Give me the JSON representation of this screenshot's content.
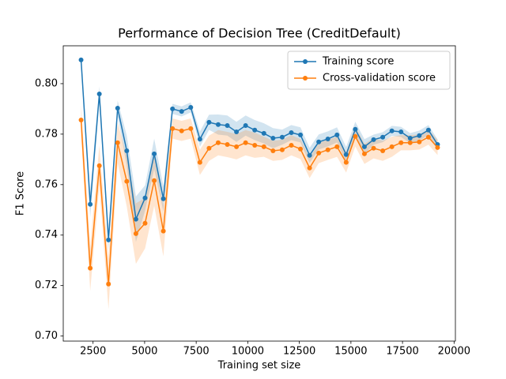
{
  "chart_data": {
    "type": "line",
    "title": "Performance of Decision Tree (CreditDefault)",
    "xlabel": "Training set size",
    "ylabel": "F1 Score",
    "x": [
      1920,
      2363,
      2806,
      3249,
      3692,
      4135,
      4578,
      5022,
      5465,
      5908,
      6351,
      6794,
      7237,
      7680,
      8123,
      8566,
      9009,
      9452,
      9895,
      10338,
      10782,
      11225,
      11668,
      12111,
      12554,
      12997,
      13440,
      13883,
      14326,
      14769,
      15212,
      15655,
      16098,
      16542,
      16985,
      17428,
      17871,
      18314,
      18757,
      19200
    ],
    "series": [
      {
        "name": "Training score",
        "color": "#1f77b4",
        "values": [
          0.8094,
          0.7522,
          0.7959,
          0.7381,
          0.7903,
          0.7734,
          0.7463,
          0.7547,
          0.7722,
          0.7544,
          0.79,
          0.789,
          0.7906,
          0.778,
          0.7847,
          0.7838,
          0.7834,
          0.7809,
          0.7834,
          0.7816,
          0.7803,
          0.7784,
          0.7788,
          0.7806,
          0.7797,
          0.7716,
          0.7769,
          0.7781,
          0.7797,
          0.7719,
          0.7819,
          0.775,
          0.7778,
          0.7788,
          0.7813,
          0.7809,
          0.7784,
          0.7794,
          0.7816,
          0.7759
        ],
        "errors": [
          0.002,
          0.005,
          0.003,
          0.004,
          0.003,
          0.006,
          0.009,
          0.005,
          0.006,
          0.005,
          0.002,
          0.002,
          0.002,
          0.003,
          0.003,
          0.004,
          0.004,
          0.004,
          0.004,
          0.004,
          0.004,
          0.004,
          0.003,
          0.003,
          0.003,
          0.003,
          0.003,
          0.003,
          0.003,
          0.003,
          0.003,
          0.003,
          0.002,
          0.002,
          0.002,
          0.002,
          0.002,
          0.002,
          0.002,
          0.002
        ]
      },
      {
        "name": "Cross-validation score",
        "color": "#ff7f0e",
        "values": [
          0.7856,
          0.7269,
          0.7675,
          0.7206,
          0.7766,
          0.7613,
          0.7406,
          0.7447,
          0.7616,
          0.7416,
          0.7822,
          0.7813,
          0.7822,
          0.7688,
          0.7744,
          0.7766,
          0.7759,
          0.775,
          0.7766,
          0.7756,
          0.775,
          0.7734,
          0.7738,
          0.7756,
          0.7741,
          0.7666,
          0.7725,
          0.7738,
          0.775,
          0.7688,
          0.7791,
          0.7722,
          0.7744,
          0.7734,
          0.775,
          0.7766,
          0.7766,
          0.7769,
          0.7788,
          0.7747
        ],
        "errors": [
          0.006,
          0.009,
          0.008,
          0.01,
          0.008,
          0.01,
          0.012,
          0.01,
          0.01,
          0.01,
          0.004,
          0.004,
          0.004,
          0.005,
          0.005,
          0.005,
          0.005,
          0.005,
          0.005,
          0.005,
          0.004,
          0.004,
          0.004,
          0.004,
          0.004,
          0.004,
          0.004,
          0.004,
          0.004,
          0.004,
          0.004,
          0.004,
          0.004,
          0.004,
          0.004,
          0.003,
          0.003,
          0.003,
          0.003,
          0.003
        ]
      }
    ],
    "xlim": [
      1056,
      20064
    ],
    "ylim": [
      0.698,
      0.815
    ],
    "xticks": [
      2500,
      5000,
      7500,
      10000,
      12500,
      15000,
      17500,
      20000
    ],
    "yticks": [
      {
        "value": 0.7,
        "label": "0.70"
      },
      0.72,
      0.74,
      0.76,
      0.78,
      {
        "value": 0.8,
        "label": "0.80"
      }
    ],
    "legend": "upper right"
  }
}
